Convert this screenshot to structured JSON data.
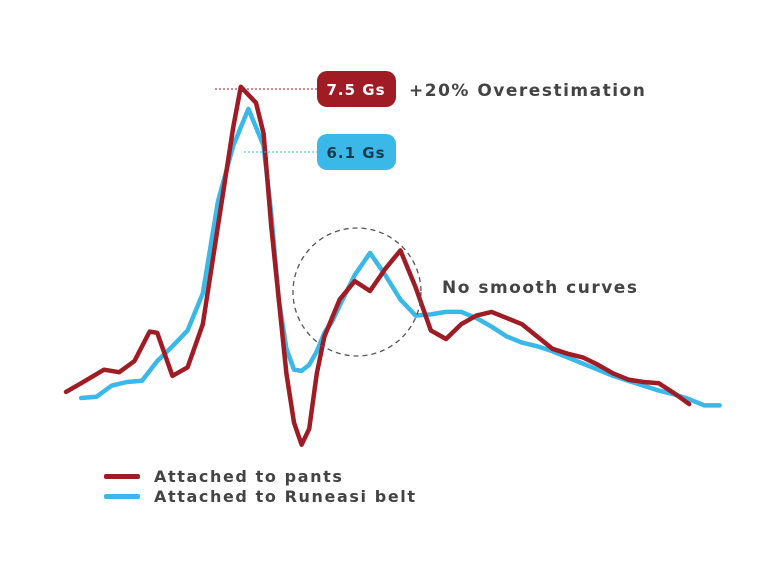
{
  "chart_data": {
    "type": "line",
    "title": "",
    "xlabel": "",
    "ylabel": "",
    "axes_visible": false,
    "grid": false,
    "legend_position": "bottom-left",
    "series": [
      {
        "name": "Attached to pants",
        "color": "#a01c24",
        "x": [
          0,
          2,
          5,
          7,
          9,
          11,
          12,
          14,
          16,
          18,
          20,
          22,
          23,
          25,
          26,
          27,
          28,
          29,
          30,
          31,
          32,
          33,
          34,
          36,
          38,
          40,
          42,
          44,
          46,
          48,
          50,
          52,
          54,
          56,
          58,
          60,
          62,
          64,
          66,
          68,
          70,
          72,
          74,
          76,
          78,
          80,
          82
        ],
        "y": [
          0.5,
          1.2,
          2.3,
          2.1,
          3.0,
          5.4,
          5.3,
          1.8,
          2.5,
          6.0,
          14.0,
          22.0,
          25.3,
          24.0,
          21.5,
          14.0,
          8.0,
          2.0,
          -2.0,
          -3.8,
          -2.5,
          2.0,
          5.0,
          8.0,
          9.5,
          8.7,
          10.5,
          12.0,
          9.0,
          5.5,
          4.8,
          6.0,
          6.7,
          7.0,
          6.5,
          6.0,
          5.0,
          4.0,
          3.6,
          3.3,
          2.7,
          2.0,
          1.5,
          1.3,
          1.2,
          0.4,
          -0.5
        ]
      },
      {
        "name": "Attached to Runeasi belt",
        "color": "#3ab8e8",
        "x": [
          2,
          4,
          6,
          8,
          10,
          12,
          14,
          16,
          18,
          20,
          22,
          24,
          26,
          27,
          28,
          29,
          30,
          31,
          32,
          33,
          34,
          35,
          36,
          38,
          40,
          42,
          44,
          46,
          48,
          50,
          52,
          54,
          56,
          58,
          60,
          62,
          64,
          66,
          68,
          70,
          72,
          74,
          76,
          78,
          80,
          82,
          84,
          86
        ],
        "y": [
          0,
          0.1,
          1.0,
          1.3,
          1.4,
          3.0,
          4.2,
          5.5,
          8.5,
          16.0,
          20.5,
          23.5,
          20.5,
          15.0,
          8.0,
          4.0,
          2.3,
          2.2,
          2.7,
          3.8,
          5.3,
          6.2,
          7.5,
          10.0,
          11.8,
          10.0,
          8.0,
          6.7,
          6.8,
          7.0,
          7.0,
          6.5,
          5.8,
          5.0,
          4.5,
          4.2,
          3.8,
          3.3,
          2.8,
          2.3,
          1.8,
          1.4,
          1.0,
          0.6,
          0.3,
          -0.1,
          -0.6,
          -0.6
        ]
      }
    ],
    "annotations": {
      "pants_peak": {
        "badge": "7.5 Gs",
        "text": "+20% Overestimation",
        "color": "#a01c24"
      },
      "belt_peak": {
        "badge": "6.1 Gs",
        "color": "#3ab8e8"
      },
      "circle_note": {
        "text": "No smooth curves"
      }
    }
  }
}
